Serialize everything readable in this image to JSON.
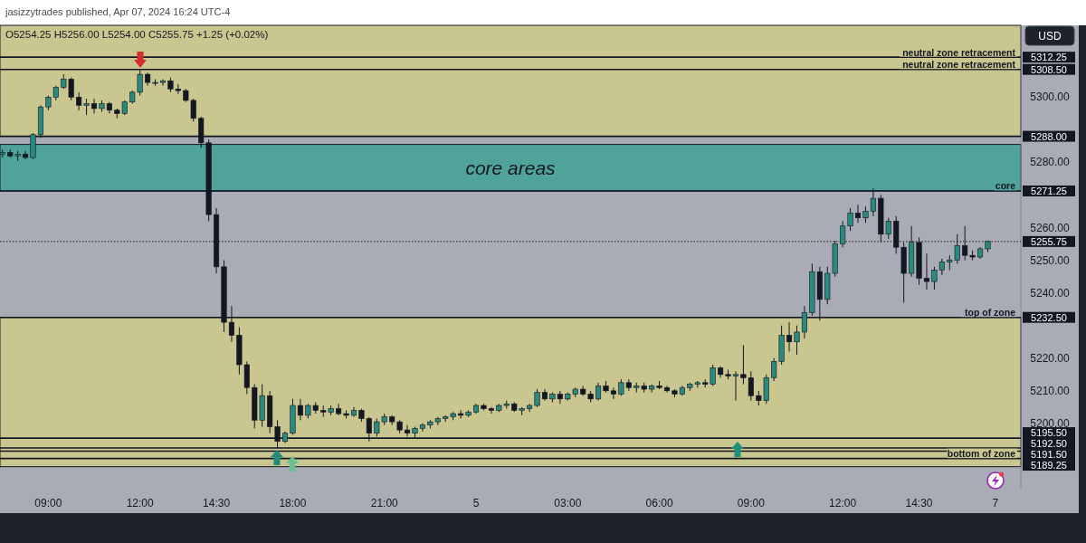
{
  "chart_data": {
    "type": "candlestick",
    "title": "O5254.25 H5256.00 L5254.00 C5255.75 +1.25 (+0.02%)",
    "ylabel": "USD",
    "annotations": [
      "jasizzytrades published, Apr 07, 2024 16:24 UTC-4",
      {
        "text": "neutral zone retracement",
        "y": 5312.25
      },
      {
        "text": "neutral zone retracement",
        "y": 5308.5
      },
      {
        "text": "core",
        "y": 5271.25
      },
      {
        "text": "top of zone",
        "y": 5232.5
      },
      {
        "text": "bottom of zone",
        "y": 5189.25
      }
    ],
    "categories": [
      null,
      null,
      null,
      null,
      null,
      null,
      "09:00",
      null,
      null,
      null,
      null,
      null,
      null,
      null,
      null,
      null,
      null,
      null,
      "12:00",
      null,
      null,
      null,
      null,
      null,
      null,
      null,
      null,
      null,
      "14:30",
      null,
      null,
      null,
      null,
      null,
      null,
      null,
      null,
      null,
      "18:00",
      null,
      null,
      null,
      null,
      null,
      null,
      null,
      null,
      null,
      null,
      null,
      "21:00",
      null,
      null,
      null,
      null,
      null,
      null,
      null,
      null,
      null,
      null,
      null,
      "5",
      null,
      null,
      null,
      null,
      null,
      null,
      null,
      null,
      null,
      null,
      null,
      "03:00",
      null,
      null,
      null,
      null,
      null,
      null,
      null,
      null,
      null,
      null,
      null,
      "06:00",
      null,
      null,
      null,
      null,
      null,
      null,
      null,
      null,
      null,
      null,
      null,
      "09:00",
      null,
      null,
      null,
      null,
      null,
      null,
      null,
      null,
      null,
      null,
      null,
      "12:00",
      null,
      null,
      null,
      null,
      null,
      null,
      null,
      null,
      null,
      "14:30",
      null,
      null,
      null,
      null,
      null,
      null,
      null,
      null,
      null,
      "7",
      null,
      null,
      null
    ],
    "ohlc": [
      [
        5282.5,
        5284,
        5281.5,
        5283
      ],
      [
        5283,
        5284,
        5281.5,
        5282
      ],
      [
        5282,
        5283.5,
        5280.5,
        5282.5
      ],
      [
        5282.5,
        5283.5,
        5281,
        5281.5
      ],
      [
        5281.5,
        5289,
        5281,
        5288.5
      ],
      [
        5288.5,
        5297.5,
        5287.5,
        5297
      ],
      [
        5297,
        5300.5,
        5296,
        5300
      ],
      [
        5300,
        5303.5,
        5299,
        5303
      ],
      [
        5303,
        5307,
        5302.5,
        5305.5
      ],
      [
        5305.5,
        5306,
        5299,
        5300
      ],
      [
        5300,
        5301.5,
        5296,
        5297.5
      ],
      [
        5297.5,
        5299.5,
        5294.5,
        5298
      ],
      [
        5298,
        5299.5,
        5295,
        5296.5
      ],
      [
        5296.5,
        5299,
        5295.5,
        5298
      ],
      [
        5298,
        5298.5,
        5295,
        5296
      ],
      [
        5296,
        5296.5,
        5293.5,
        5295
      ],
      [
        5295,
        5299,
        5294.5,
        5298.5
      ],
      [
        5298.5,
        5302,
        5298,
        5301.5
      ],
      [
        5301.5,
        5308.5,
        5300.5,
        5307
      ],
      [
        5307,
        5307.5,
        5303.5,
        5304.5
      ],
      [
        5304.5,
        5305.5,
        5303.5,
        5304.5
      ],
      [
        5304.5,
        5305.5,
        5303.5,
        5305
      ],
      [
        5305,
        5306,
        5301.5,
        5302.5
      ],
      [
        5302.5,
        5304,
        5301,
        5302
      ],
      [
        5302,
        5302.5,
        5298.5,
        5299
      ],
      [
        5299,
        5299.5,
        5292.5,
        5293.5
      ],
      [
        5293.5,
        5294,
        5284.5,
        5286
      ],
      [
        5286,
        5287,
        5262,
        5264
      ],
      [
        5264,
        5266,
        5246,
        5248
      ],
      [
        5248,
        5250,
        5228,
        5231
      ],
      [
        5231,
        5236,
        5225,
        5227
      ],
      [
        5227,
        5229.5,
        5215,
        5218
      ],
      [
        5218,
        5219,
        5209,
        5211
      ],
      [
        5211,
        5212,
        5198.5,
        5201
      ],
      [
        5201,
        5212,
        5199,
        5208.5
      ],
      [
        5208.5,
        5210,
        5197,
        5199
      ],
      [
        5199,
        5201,
        5192.5,
        5194.5
      ],
      [
        5194.5,
        5197.5,
        5194,
        5197
      ],
      [
        5197,
        5207.5,
        5196.5,
        5205.5
      ],
      [
        5205.5,
        5207.5,
        5201,
        5202.5
      ],
      [
        5202.5,
        5206,
        5201.5,
        5205.5
      ],
      [
        5205.5,
        5206.5,
        5203,
        5204
      ],
      [
        5204,
        5205.5,
        5202,
        5203.5
      ],
      [
        5203.5,
        5205.5,
        5202.5,
        5204.5
      ],
      [
        5204.5,
        5206,
        5202.5,
        5203
      ],
      [
        5203,
        5204,
        5201.5,
        5202.5
      ],
      [
        5202.5,
        5205,
        5202,
        5204
      ],
      [
        5204,
        5204.5,
        5200.5,
        5201.5
      ],
      [
        5201.5,
        5202,
        5194.5,
        5197
      ],
      [
        5197,
        5201.5,
        5196,
        5200.5
      ],
      [
        5200.5,
        5203,
        5199.5,
        5202
      ],
      [
        5202,
        5202.5,
        5199.5,
        5200.5
      ],
      [
        5200.5,
        5201,
        5197,
        5198
      ],
      [
        5198,
        5199.5,
        5196,
        5197
      ],
      [
        5197,
        5199,
        5195.5,
        5198.5
      ],
      [
        5198.5,
        5200,
        5197.5,
        5199.5
      ],
      [
        5199.5,
        5201,
        5198.5,
        5200.5
      ],
      [
        5200.5,
        5202,
        5199.5,
        5201.5
      ],
      [
        5201.5,
        5202.5,
        5200.5,
        5202
      ],
      [
        5202,
        5203.5,
        5201,
        5203
      ],
      [
        5203,
        5204,
        5201.5,
        5202.5
      ],
      [
        5202.5,
        5204,
        5202,
        5203.5
      ],
      [
        5203.5,
        5206,
        5203,
        5205.5
      ],
      [
        5205.5,
        5206,
        5204,
        5204.5
      ],
      [
        5204.5,
        5205,
        5203,
        5204
      ],
      [
        5204,
        5206,
        5203.5,
        5205.5
      ],
      [
        5205.5,
        5207,
        5204.5,
        5206
      ],
      [
        5206,
        5206.5,
        5203.5,
        5204
      ],
      [
        5204,
        5205,
        5202.5,
        5204.5
      ],
      [
        5204.5,
        5206,
        5203.5,
        5205.5
      ],
      [
        5205.5,
        5210.5,
        5205,
        5209.5
      ],
      [
        5209.5,
        5210.5,
        5207,
        5207.5
      ],
      [
        5207.5,
        5209.5,
        5206.5,
        5209
      ],
      [
        5209,
        5210,
        5206,
        5207.5
      ],
      [
        5207.5,
        5209.5,
        5207,
        5209
      ],
      [
        5209,
        5211,
        5208,
        5210.5
      ],
      [
        5210.5,
        5211.5,
        5208.5,
        5209
      ],
      [
        5209,
        5210,
        5206.5,
        5207.5
      ],
      [
        5207.5,
        5212.5,
        5207,
        5211.5
      ],
      [
        5211.5,
        5213,
        5209.5,
        5210
      ],
      [
        5210,
        5211,
        5207.5,
        5209
      ],
      [
        5209,
        5213.5,
        5208.5,
        5212.5
      ],
      [
        5212.5,
        5213.5,
        5210,
        5211
      ],
      [
        5211,
        5212.5,
        5209.5,
        5211.5
      ],
      [
        5211.5,
        5212.5,
        5209.5,
        5210.5
      ],
      [
        5210.5,
        5212,
        5209.5,
        5211.5
      ],
      [
        5211.5,
        5213,
        5210.5,
        5211
      ],
      [
        5211,
        5211.5,
        5209.5,
        5210
      ],
      [
        5210,
        5210.5,
        5208,
        5209
      ],
      [
        5209,
        5211.5,
        5208.5,
        5211
      ],
      [
        5211,
        5212.5,
        5210,
        5212
      ],
      [
        5212,
        5213,
        5211,
        5212.5
      ],
      [
        5212.5,
        5213.5,
        5211,
        5212
      ],
      [
        5212,
        5218,
        5211.5,
        5217
      ],
      [
        5217,
        5217.5,
        5214,
        5215
      ],
      [
        5215,
        5216.5,
        5213.5,
        5214.5
      ],
      [
        5214.5,
        5216,
        5207,
        5215
      ],
      [
        5215,
        5224,
        5212,
        5214
      ],
      [
        5214,
        5216,
        5207,
        5208.5
      ],
      [
        5208.5,
        5210,
        5205.5,
        5207
      ],
      [
        5207,
        5215,
        5206,
        5214
      ],
      [
        5214,
        5220,
        5213,
        5219
      ],
      [
        5219,
        5230,
        5218,
        5227
      ],
      [
        5227,
        5231,
        5222,
        5225
      ],
      [
        5225,
        5230,
        5221,
        5228
      ],
      [
        5228,
        5236,
        5226,
        5234
      ],
      [
        5234,
        5249,
        5233,
        5246.5
      ],
      [
        5246.5,
        5248,
        5231.5,
        5238
      ],
      [
        5238,
        5248,
        5236.5,
        5246
      ],
      [
        5246,
        5256,
        5245,
        5255
      ],
      [
        5255,
        5262,
        5254,
        5260.5
      ],
      [
        5260.5,
        5266,
        5259,
        5264.5
      ],
      [
        5264.5,
        5267,
        5261.5,
        5263
      ],
      [
        5263,
        5266.5,
        5261.5,
        5265
      ],
      [
        5265,
        5272,
        5263.5,
        5269
      ],
      [
        5269,
        5270,
        5255.5,
        5258
      ],
      [
        5258,
        5263,
        5256.5,
        5262
      ],
      [
        5262,
        5263.5,
        5252,
        5254
      ],
      [
        5254,
        5255.5,
        5237,
        5246
      ],
      [
        5246,
        5260.5,
        5245,
        5255.5
      ],
      [
        5255.5,
        5257,
        5242.5,
        5244.5
      ],
      [
        5244.5,
        5252,
        5241,
        5243.5
      ],
      [
        5243.5,
        5248,
        5241,
        5247
      ],
      [
        5247,
        5250.5,
        5245.5,
        5249.5
      ],
      [
        5249.5,
        5251.5,
        5247,
        5250
      ],
      [
        5250,
        5258,
        5249,
        5254.5
      ],
      [
        5254.5,
        5260.5,
        5250,
        5251.5
      ],
      [
        5251.5,
        5253,
        5250,
        5251
      ],
      [
        5251,
        5254,
        5250.5,
        5253.5
      ],
      [
        5253.5,
        5256,
        5252.5,
        5255.75
      ],
      null,
      null,
      null,
      null
    ],
    "ylim": [
      5180,
      5322
    ],
    "yticks": [
      {
        "value": 5200,
        "label": "5200.00"
      },
      {
        "value": 5210,
        "label": "5210.00"
      },
      {
        "value": 5220,
        "label": "5220.00"
      },
      {
        "value": 5240,
        "label": "5240.00"
      },
      {
        "value": 5250,
        "label": "5250.00"
      },
      {
        "value": 5260,
        "label": "5260.00"
      },
      {
        "value": 5280,
        "label": "5280.00"
      },
      {
        "value": 5300,
        "label": "5300.00"
      }
    ],
    "bands": [
      {
        "axis": "y",
        "from": 5288,
        "to": 5322,
        "color": "#cac690"
      },
      {
        "axis": "y",
        "from": 5271.25,
        "to": 5285.5,
        "color": "#4fa399",
        "label": "core areas"
      },
      {
        "axis": "y",
        "from": 5186.75,
        "to": 5232.5,
        "color": "#cac690"
      }
    ],
    "ref_lines": [
      {
        "axis": "y",
        "value": 5312.25,
        "label": "5312.25"
      },
      {
        "axis": "y",
        "value": 5308.5,
        "label": "5308.50"
      },
      {
        "axis": "y",
        "value": 5288,
        "label": "5288.00"
      },
      {
        "axis": "y",
        "value": 5271.25,
        "label": "5271.25"
      },
      {
        "axis": "y",
        "value": 5255.75,
        "label": "5255.75",
        "line_style": "dotted"
      },
      {
        "axis": "y",
        "value": 5232.5,
        "label": "5232.50"
      },
      {
        "axis": "y",
        "value": 5195.5,
        "label": "5195.50"
      },
      {
        "axis": "y",
        "value": 5192.5,
        "label": "5192.50"
      },
      {
        "axis": "y",
        "value": 5191.5,
        "label": "5191.50"
      },
      {
        "axis": "y",
        "value": 5189.25,
        "label": "5189.25"
      }
    ]
  }
}
